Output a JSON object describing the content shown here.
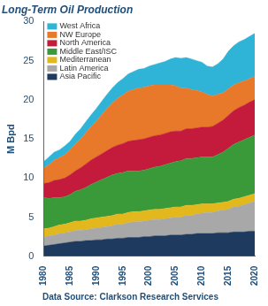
{
  "chart_data": {
    "type": "area",
    "title": "Long-Term Oil Production",
    "subtitle": "Data Source: Clarkson Research Services",
    "y_label": "M Bpd",
    "stacked": true,
    "grid": false,
    "legend": "top-left",
    "x": [
      1980,
      1981,
      1982,
      1983,
      1984,
      1985,
      1986,
      1987,
      1988,
      1989,
      1990,
      1991,
      1992,
      1993,
      1994,
      1995,
      1996,
      1997,
      1998,
      1999,
      2000,
      2001,
      2002,
      2003,
      2004,
      2005,
      2006,
      2007,
      2008,
      2009,
      2010,
      2011,
      2012,
      2013,
      2014,
      2015,
      2016,
      2017,
      2018,
      2019,
      2020
    ],
    "xlim": [
      1980,
      2020
    ],
    "xticks": [
      1980,
      1985,
      1990,
      1995,
      2000,
      2005,
      2010,
      2015,
      2020
    ],
    "ylim": [
      0,
      30
    ],
    "yticks": [
      0,
      5,
      10,
      15,
      20,
      25,
      30
    ],
    "series": [
      {
        "name": "West Africa",
        "color": "#2fb4d8",
        "values": [
          0.8,
          1.0,
          1.0,
          1.0,
          1.1,
          1.1,
          1.2,
          1.3,
          1.4,
          1.5,
          1.6,
          1.7,
          1.8,
          1.9,
          2.0,
          2.1,
          2.2,
          2.3,
          2.4,
          2.4,
          2.5,
          2.6,
          2.8,
          3.0,
          3.3,
          3.6,
          3.8,
          3.9,
          3.9,
          3.8,
          3.8,
          3.6,
          3.7,
          3.9,
          4.3,
          4.8,
          5.0,
          5.2,
          5.3,
          5.4,
          5.5
        ]
      },
      {
        "name": "NW Europe",
        "color": "#e8782a",
        "values": [
          2.0,
          2.3,
          2.6,
          2.8,
          3.0,
          3.2,
          3.5,
          3.7,
          4.0,
          4.3,
          4.6,
          5.0,
          5.4,
          5.7,
          6.0,
          6.2,
          6.4,
          6.5,
          6.6,
          6.6,
          6.6,
          6.5,
          6.4,
          6.2,
          6.0,
          5.8,
          5.5,
          5.2,
          5.0,
          4.8,
          4.5,
          4.2,
          3.9,
          3.7,
          3.5,
          3.4,
          3.3,
          3.2,
          3.1,
          3.0,
          3.0
        ]
      },
      {
        "name": "North America",
        "color": "#c41a3b",
        "values": [
          1.8,
          2.0,
          2.2,
          2.3,
          2.4,
          2.5,
          2.6,
          2.8,
          3.0,
          3.1,
          3.2,
          3.3,
          3.4,
          3.5,
          3.6,
          3.7,
          3.8,
          3.9,
          4.0,
          4.0,
          4.0,
          4.0,
          4.0,
          4.0,
          4.0,
          3.9,
          3.8,
          3.8,
          3.8,
          3.8,
          3.8,
          3.8,
          3.9,
          4.0,
          4.1,
          4.2,
          4.3,
          4.4,
          4.4,
          4.5,
          4.5
        ]
      },
      {
        "name": "Middle East/ISC",
        "color": "#3a9a3a",
        "values": [
          4.0,
          3.8,
          3.7,
          3.5,
          3.5,
          3.6,
          3.8,
          4.0,
          4.2,
          4.4,
          4.6,
          4.8,
          5.0,
          5.2,
          5.2,
          5.3,
          5.3,
          5.2,
          5.2,
          5.2,
          5.3,
          5.4,
          5.5,
          5.6,
          5.7,
          5.8,
          5.9,
          6.0,
          6.0,
          6.0,
          6.0,
          6.0,
          6.0,
          6.2,
          6.4,
          6.8,
          7.0,
          7.2,
          7.3,
          7.4,
          7.5
        ]
      },
      {
        "name": "Mediterranean",
        "color": "#e3b81c",
        "values": [
          1.0,
          1.0,
          1.1,
          1.1,
          1.1,
          1.2,
          1.2,
          1.2,
          1.2,
          1.3,
          1.3,
          1.3,
          1.3,
          1.3,
          1.3,
          1.3,
          1.3,
          1.3,
          1.3,
          1.3,
          1.3,
          1.3,
          1.3,
          1.3,
          1.3,
          1.3,
          1.3,
          1.3,
          1.3,
          1.2,
          1.2,
          1.1,
          1.1,
          1.0,
          1.0,
          1.0,
          1.0,
          1.0,
          1.0,
          1.0,
          1.0
        ]
      },
      {
        "name": "Latin America",
        "color": "#a8a8a8",
        "values": [
          1.2,
          1.2,
          1.2,
          1.3,
          1.3,
          1.3,
          1.4,
          1.4,
          1.4,
          1.5,
          1.5,
          1.6,
          1.6,
          1.7,
          1.8,
          1.8,
          1.9,
          2.0,
          2.0,
          2.0,
          2.1,
          2.1,
          2.1,
          2.2,
          2.2,
          2.3,
          2.3,
          2.4,
          2.4,
          2.5,
          2.6,
          2.7,
          2.7,
          2.8,
          2.9,
          3.0,
          3.2,
          3.3,
          3.5,
          3.6,
          3.8
        ]
      },
      {
        "name": "Asia Pacific",
        "color": "#1f3a5f",
        "values": [
          1.3,
          1.4,
          1.5,
          1.6,
          1.7,
          1.8,
          1.9,
          1.9,
          2.0,
          2.0,
          2.1,
          2.1,
          2.2,
          2.2,
          2.3,
          2.3,
          2.4,
          2.4,
          2.4,
          2.5,
          2.5,
          2.6,
          2.6,
          2.6,
          2.7,
          2.7,
          2.7,
          2.8,
          2.8,
          2.9,
          2.9,
          2.9,
          2.9,
          3.0,
          3.0,
          3.0,
          3.1,
          3.1,
          3.1,
          3.2,
          3.2
        ]
      }
    ]
  }
}
